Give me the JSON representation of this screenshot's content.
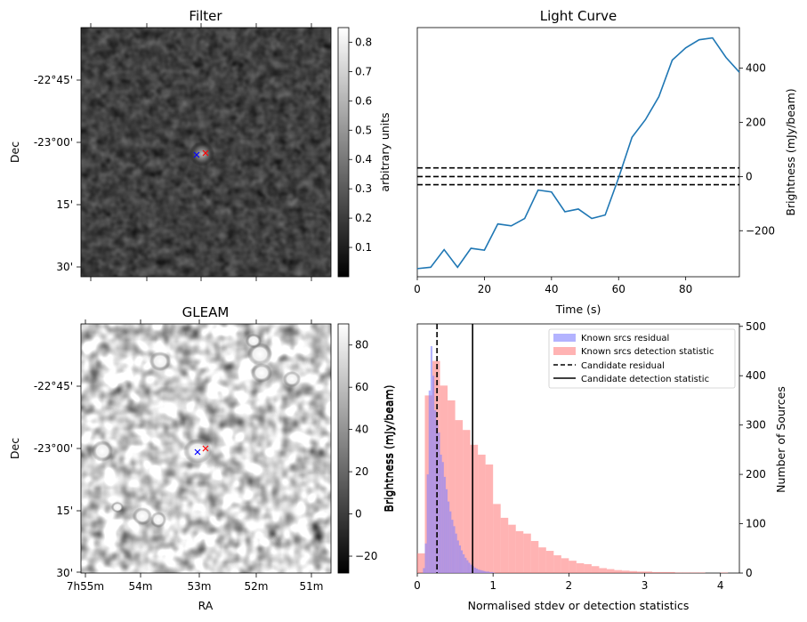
{
  "filter_panel": {
    "title": "Filter",
    "ylabel": "Dec",
    "yticks": [
      "-22°45'",
      "-23°00'",
      "15'",
      "30'"
    ],
    "colorbar_label": "arbitrary units",
    "colorbar_ticks": [
      "0.8",
      "0.7",
      "0.6",
      "0.5",
      "0.4",
      "0.3",
      "0.2",
      "0.1"
    ],
    "colorbar_range": [
      0.0,
      0.85
    ]
  },
  "gleam_panel": {
    "title": "GLEAM",
    "ylabel": "Dec",
    "xlabel": "RA",
    "yticks": [
      "-22°45'",
      "-23°00'",
      "15'",
      "30'"
    ],
    "xticks": [
      "7h55m",
      "54m",
      "53m",
      "52m",
      "51m"
    ],
    "colorbar_label": "Brightness (mJy/beam)",
    "colorbar_ticks": [
      "80",
      "60",
      "40",
      "20",
      "0",
      "−20"
    ],
    "colorbar_range": [
      -28,
      90
    ]
  },
  "marker_colors": {
    "candidate": "#0000ff",
    "known": "#ff0000"
  },
  "chart_data": [
    {
      "type": "line",
      "title": "Light Curve",
      "xlabel": "Time (s)",
      "ylabel": "Brightness (mJy/beam)",
      "xlim": [
        0,
        96
      ],
      "ylim": [
        -370,
        550
      ],
      "xticks": [
        "0",
        "20",
        "40",
        "60",
        "80"
      ],
      "yticks": [
        "400",
        "200",
        "0",
        "−200"
      ],
      "color": "#1f77b4",
      "x": [
        0,
        4,
        8,
        12,
        16,
        20,
        24,
        28,
        32,
        36,
        40,
        44,
        48,
        52,
        56,
        60,
        64,
        68,
        72,
        76,
        80,
        84,
        88,
        92,
        96
      ],
      "y": [
        -340,
        -335,
        -270,
        -335,
        -265,
        -272,
        -175,
        -182,
        -155,
        -50,
        -57,
        -130,
        -120,
        -155,
        -142,
        -5,
        145,
        210,
        295,
        430,
        475,
        505,
        512,
        440,
        385
      ],
      "hlines": [
        32,
        0,
        -30
      ]
    },
    {
      "type": "bar",
      "xlabel": "Normalised stdev or detection statistics",
      "ylabel_left": "Brightness (mJy/beam)",
      "ylabel_right": "Number of Sources",
      "xlim": [
        0,
        4.25
      ],
      "ylim": [
        0,
        505
      ],
      "xticks": [
        "0",
        "1",
        "2",
        "3",
        "4"
      ],
      "yticks": [
        "500",
        "400",
        "300",
        "200",
        "100",
        "0"
      ],
      "bin_width": 0.1,
      "legend_position": "top-right",
      "series": [
        {
          "name": "Known srcs residual",
          "color": "#8080ff",
          "bin_start": 0.0,
          "bin_width": 0.025,
          "values": [
            0,
            0,
            0,
            10,
            60,
            200,
            370,
            460,
            400,
            330,
            310,
            285,
            240,
            225,
            195,
            170,
            145,
            125,
            108,
            95,
            80,
            66,
            56,
            46,
            38,
            31,
            26,
            21,
            17,
            14,
            11,
            9,
            7,
            6,
            5,
            4,
            3,
            3,
            2,
            2,
            1
          ]
        },
        {
          "name": "Known srcs detection statistic",
          "color": "#ff8080",
          "bin_start": 0.0,
          "bin_width": 0.1,
          "values": [
            40,
            360,
            430,
            380,
            350,
            310,
            290,
            260,
            240,
            220,
            140,
            112,
            98,
            85,
            80,
            65,
            52,
            45,
            36,
            30,
            25,
            20,
            18,
            14,
            10,
            8,
            6,
            5,
            4,
            3,
            3,
            2,
            2,
            2,
            1,
            1,
            1,
            1,
            0,
            0,
            1
          ]
        }
      ],
      "vlines": [
        {
          "name": "Candidate residual",
          "x": 0.26,
          "style": "dashed"
        },
        {
          "name": "Candidate detection statistic",
          "x": 0.73,
          "style": "solid"
        }
      ]
    }
  ]
}
